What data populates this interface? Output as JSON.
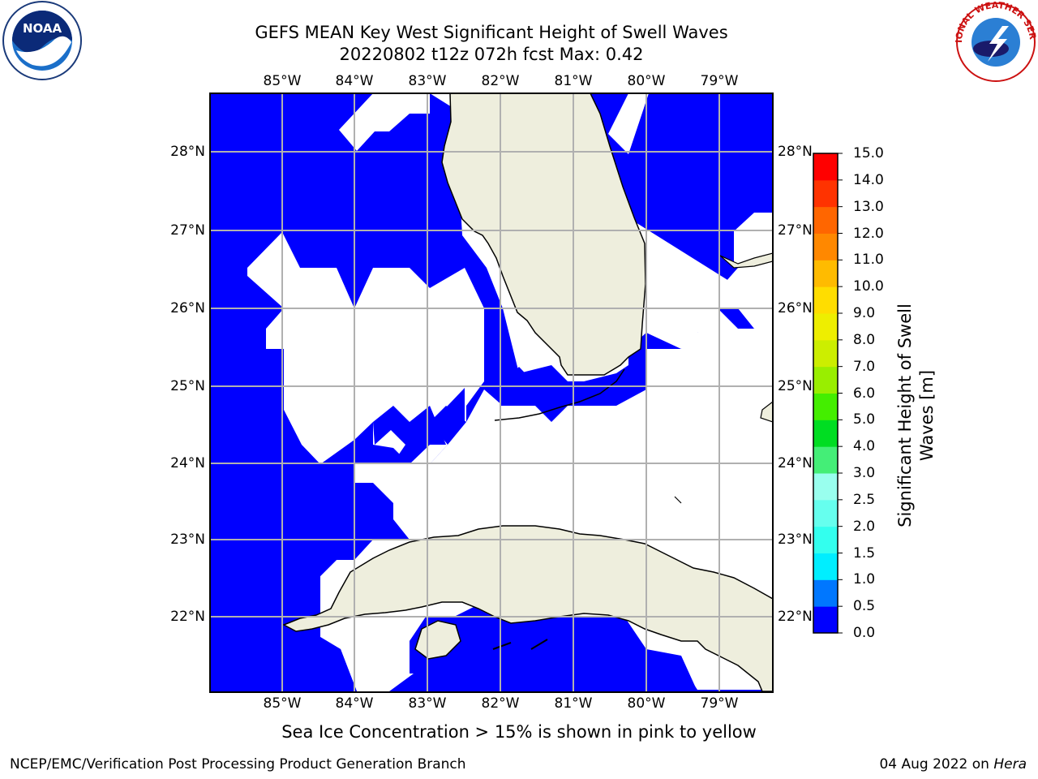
{
  "header": {
    "title_line1": "GEFS MEAN Key West Significant Height of Swell Waves",
    "title_line2": "20220802 t12z 072h fcst   Max: 0.42"
  },
  "map": {
    "lon_ticks": [
      "85°W",
      "84°W",
      "83°W",
      "82°W",
      "81°W",
      "80°W",
      "79°W"
    ],
    "lat_ticks": [
      "28°N",
      "27°N",
      "26°N",
      "25°N",
      "24°N",
      "23°N",
      "22°N"
    ],
    "colors": {
      "ocean_fill": "#0000ff",
      "land_fill": "#eeeedd",
      "blank_fill": "#ffffff",
      "grid": "#b0b0b0"
    }
  },
  "colorbar": {
    "label_line1": "Significant Height of Swell",
    "label_line2": "Waves [m]",
    "ticks": [
      "0.0",
      "0.5",
      "1.0",
      "1.5",
      "2.0",
      "2.5",
      "3.0",
      "4.0",
      "5.0",
      "6.0",
      "7.0",
      "8.0",
      "9.0",
      "10.0",
      "11.0",
      "12.0",
      "13.0",
      "14.0",
      "15.0"
    ],
    "colors": [
      "#0000ff",
      "#0077ff",
      "#00eeff",
      "#33ffee",
      "#66ffee",
      "#99ffee",
      "#44ee77",
      "#00dd22",
      "#44ee00",
      "#99ee00",
      "#ccee00",
      "#eeee00",
      "#ffdd00",
      "#ffbb00",
      "#ff8800",
      "#ff6600",
      "#ff3300",
      "#ff0000"
    ]
  },
  "caption": "Sea Ice Concentration > 15% is shown in pink to yellow",
  "footer": {
    "left": "NCEP/EMC/Verification Post Processing Product Generation Branch",
    "date": "04 Aug 2022 on ",
    "host": "Hera"
  },
  "logos": {
    "noaa_text": "NOAA",
    "nws_text": "NATIONAL WEATHER SERVICE"
  }
}
